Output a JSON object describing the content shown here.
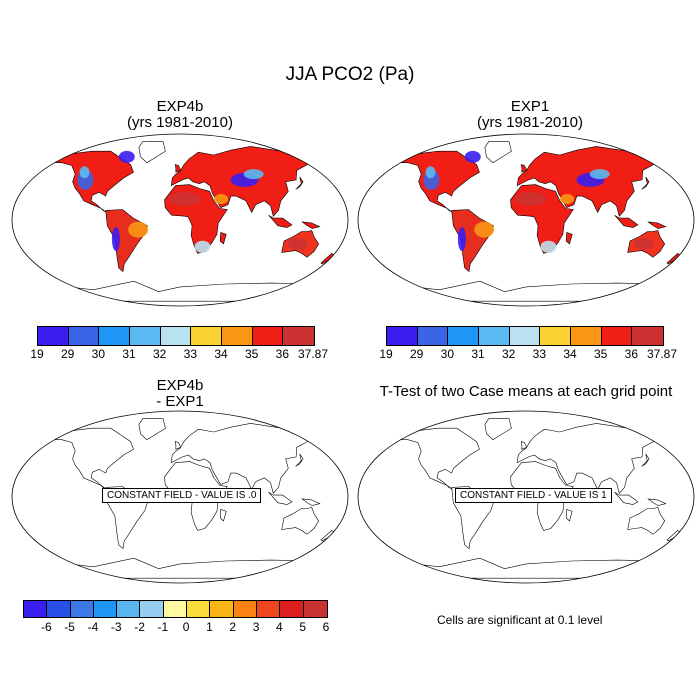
{
  "title": "JJA PCO2 (Pa)",
  "panels": {
    "top_left": {
      "title_line1": "EXP4b",
      "title_line2": "(yrs 1981-2010)"
    },
    "top_right": {
      "title_line1": "EXP1",
      "title_line2": "(yrs 1981-2010)"
    },
    "bottom_left": {
      "title_line1": "EXP4b",
      "title_line2": "- EXP1",
      "field_label": "CONSTANT FIELD - VALUE IS .0"
    },
    "bottom_right": {
      "title": "T-Test of two Case means at each grid point",
      "field_label": "CONSTANT FIELD - VALUE IS 1"
    }
  },
  "colorbar_abs": {
    "labels": [
      "19",
      "29",
      "30",
      "31",
      "32",
      "33",
      "34",
      "35",
      "36",
      "37.87"
    ],
    "colors": [
      "#3a1ef0",
      "#3a64e6",
      "#1e96f5",
      "#5ab9f0",
      "#b9e1f0",
      "#fad232",
      "#fa9614",
      "#f01e14",
      "#cd3232"
    ]
  },
  "colorbar_diff": {
    "labels": [
      "-6",
      "-5",
      "-4",
      "-3",
      "-2",
      "-1",
      "0",
      "1",
      "2",
      "3",
      "4",
      "5",
      "6"
    ],
    "colors": [
      "#3a1ef0",
      "#2850e6",
      "#3c78e6",
      "#1e96f5",
      "#5ab4f0",
      "#96cdf0",
      "#fffaa0",
      "#fadc3c",
      "#fab414",
      "#fa8214",
      "#f0461e",
      "#dc1e1e",
      "#c83232"
    ]
  },
  "significance_note": "Cells are significant at 0.1 level"
}
